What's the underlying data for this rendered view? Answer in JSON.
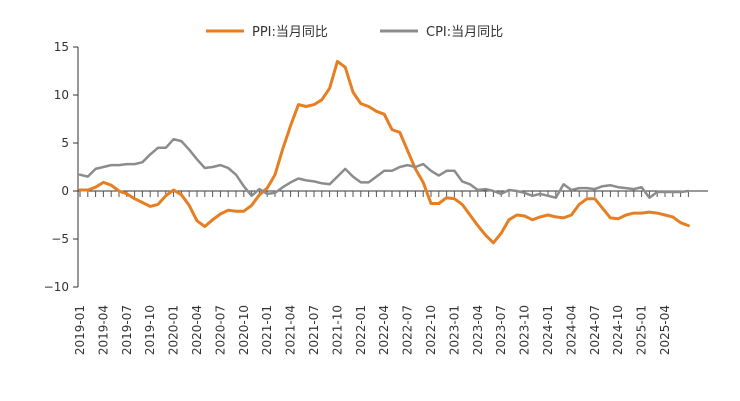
{
  "chart_data": {
    "type": "line",
    "title": "",
    "xlabel": "",
    "ylabel": "",
    "ylim": [
      -10,
      15
    ],
    "yticks": [
      15,
      10,
      5,
      0,
      -5,
      -10
    ],
    "x_tick_labels": [
      "2019-01",
      "2019-04",
      "2019-07",
      "2019-10",
      "2020-01",
      "2020-04",
      "2020-07",
      "2020-10",
      "2021-01",
      "2021-04",
      "2021-07",
      "2021-10",
      "2022-01",
      "2022-04",
      "2022-07",
      "2022-10",
      "2023-01",
      "2023-04",
      "2023-07",
      "2023-10",
      "2024-01",
      "2024-04",
      "2024-07",
      "2024-10",
      "2025-01",
      "2025-04"
    ],
    "x_start": "2019-01",
    "grid": false,
    "legend": "top-center",
    "series": [
      {
        "name": "PPI:当月同比",
        "color": "#E67E22",
        "values": [
          0.1,
          0.1,
          0.4,
          0.9,
          0.6,
          0.0,
          -0.3,
          -0.8,
          -1.2,
          -1.6,
          -1.4,
          -0.5,
          0.1,
          -0.4,
          -1.5,
          -3.1,
          -3.7,
          -3.0,
          -2.4,
          -2.0,
          -2.1,
          -2.1,
          -1.5,
          -0.4,
          0.3,
          1.7,
          4.4,
          6.8,
          9.0,
          8.8,
          9.0,
          9.5,
          10.7,
          13.5,
          12.9,
          10.3,
          9.1,
          8.8,
          8.3,
          8.0,
          6.4,
          6.1,
          4.2,
          2.3,
          0.9,
          -1.3,
          -1.3,
          -0.7,
          -0.8,
          -1.4,
          -2.5,
          -3.6,
          -4.6,
          -5.4,
          -4.4,
          -3.0,
          -2.5,
          -2.6,
          -3.0,
          -2.7,
          -2.5,
          -2.7,
          -2.8,
          -2.5,
          -1.4,
          -0.8,
          -0.8,
          -1.8,
          -2.8,
          -2.9,
          -2.5,
          -2.3,
          -2.3,
          -2.2,
          -2.3,
          -2.5,
          -2.7,
          -3.3,
          -3.6
        ],
        "note": ""
      },
      {
        "name": "CPI:当月同比",
        "color": "#8C8C8C",
        "values": [
          1.7,
          1.5,
          2.3,
          2.5,
          2.7,
          2.7,
          2.8,
          2.8,
          3.0,
          3.8,
          4.5,
          4.5,
          5.4,
          5.2,
          4.3,
          3.3,
          2.4,
          2.5,
          2.7,
          2.4,
          1.7,
          0.5,
          -0.5,
          0.2,
          -0.3,
          -0.2,
          0.4,
          0.9,
          1.3,
          1.1,
          1.0,
          0.8,
          0.7,
          1.5,
          2.3,
          1.5,
          0.9,
          0.9,
          1.5,
          2.1,
          2.1,
          2.5,
          2.7,
          2.5,
          2.8,
          2.1,
          1.6,
          2.1,
          2.1,
          1.0,
          0.7,
          0.1,
          0.2,
          0.0,
          -0.3,
          0.1,
          0.0,
          -0.2,
          -0.5,
          -0.3,
          -0.5,
          -0.7,
          0.7,
          0.1,
          0.3,
          0.3,
          0.2,
          0.5,
          0.6,
          0.4,
          0.3,
          0.2,
          0.4,
          -0.7,
          -0.1,
          -0.1,
          -0.1,
          -0.1,
          0.0
        ],
        "note": ""
      }
    ]
  }
}
